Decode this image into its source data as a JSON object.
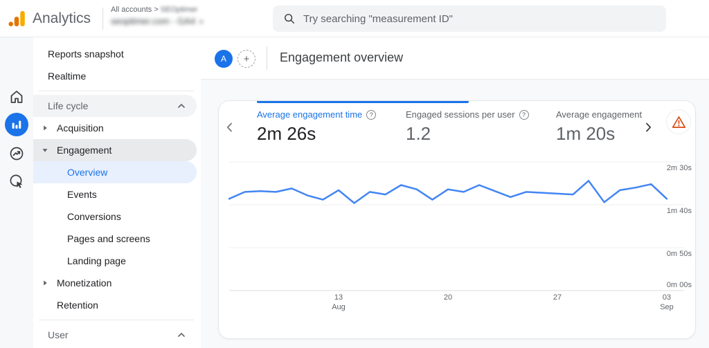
{
  "app_bar": {
    "product_name": "Analytics",
    "account_breadcrumb": {
      "prefix": "All accounts",
      "separator": ">",
      "organization": "SEOptimer"
    },
    "property_selector": {
      "label": "seoptimer.com - GA4",
      "caret": "▾"
    },
    "search": {
      "placeholder": "Try searching \"measurement ID\"",
      "icon": "search-icon"
    }
  },
  "nav_rail": {
    "items": [
      {
        "id": "home",
        "icon": "home-icon",
        "active": false
      },
      {
        "id": "reports",
        "icon": "bar-chart-icon",
        "active": true
      },
      {
        "id": "explore",
        "icon": "explore-icon",
        "active": false
      },
      {
        "id": "advertising",
        "icon": "advertising-icon",
        "active": false
      }
    ]
  },
  "sidebar": {
    "items": [
      {
        "type": "link",
        "label": "Reports snapshot",
        "level": 0
      },
      {
        "type": "link",
        "label": "Realtime",
        "level": 0
      },
      {
        "type": "divider"
      },
      {
        "type": "section",
        "label": "Life cycle",
        "highlighted": true,
        "collapse_icon": "chevron-up-icon"
      },
      {
        "type": "expandable",
        "label": "Acquisition",
        "expanded": false
      },
      {
        "type": "expandable",
        "label": "Engagement",
        "expanded": true,
        "highlighted": true
      },
      {
        "type": "sublink",
        "label": "Overview",
        "selected": true
      },
      {
        "type": "sublink",
        "label": "Events",
        "selected": false
      },
      {
        "type": "sublink",
        "label": "Conversions",
        "selected": false
      },
      {
        "type": "sublink",
        "label": "Pages and screens",
        "selected": false
      },
      {
        "type": "sublink",
        "label": "Landing page",
        "selected": false
      },
      {
        "type": "expandable",
        "label": "Monetization",
        "expanded": false
      },
      {
        "type": "link",
        "label": "Retention",
        "level": 1
      },
      {
        "type": "divider"
      },
      {
        "type": "section",
        "label": "User",
        "highlighted": false,
        "collapse_icon": "chevron-up-icon"
      }
    ]
  },
  "content_header": {
    "avatar_label": "A",
    "add_label": "+",
    "title": "Engagement overview"
  },
  "metrics_carousel": {
    "prev_icon": "chevron-left-icon",
    "next_icon": "chevron-right-icon",
    "warning_icon": "warning-triangle-icon",
    "metrics": [
      {
        "label": "Average engagement time",
        "value": "2m 26s",
        "selected": true,
        "help_icon": "question-mark-icon"
      },
      {
        "label": "Engaged sessions per user",
        "value": "1.2",
        "selected": false,
        "help_icon": "question-mark-icon"
      },
      {
        "label": "Average engagement",
        "value": "1m 20s",
        "selected": false,
        "help_icon": null
      }
    ]
  },
  "chart_data": {
    "type": "line",
    "x": [
      "Aug 6",
      "Aug 7",
      "Aug 8",
      "Aug 9",
      "Aug 10",
      "Aug 11",
      "Aug 12",
      "Aug 13",
      "Aug 14",
      "Aug 15",
      "Aug 16",
      "Aug 17",
      "Aug 18",
      "Aug 19",
      "Aug 20",
      "Aug 21",
      "Aug 22",
      "Aug 23",
      "Aug 24",
      "Aug 25",
      "Aug 26",
      "Aug 27",
      "Aug 28",
      "Aug 29",
      "Aug 30",
      "Aug 31",
      "Sep 1",
      "Sep 2",
      "Sep 3"
    ],
    "series": [
      {
        "name": "Average engagement time",
        "unit": "seconds",
        "color": "#4285f4",
        "values": [
          107,
          115,
          116,
          115,
          119,
          111,
          106,
          117,
          102,
          115,
          112,
          123,
          118,
          106,
          118,
          115,
          123,
          116,
          109,
          115,
          114,
          113,
          112,
          128,
          103,
          117,
          120,
          124,
          107
        ]
      }
    ],
    "y_ticks": [
      {
        "seconds": 150,
        "label": "2m 30s"
      },
      {
        "seconds": 100,
        "label": "1m 40s"
      },
      {
        "seconds": 50,
        "label": "0m 50s"
      },
      {
        "seconds": 0,
        "label": "0m 00s"
      }
    ],
    "x_ticks": [
      {
        "index": 7,
        "lines": [
          "13",
          "Aug"
        ]
      },
      {
        "index": 14,
        "lines": [
          "20"
        ]
      },
      {
        "index": 21,
        "lines": [
          "27"
        ]
      },
      {
        "index": 28,
        "lines": [
          "03",
          "Sep"
        ]
      }
    ],
    "ylim": [
      0,
      155
    ],
    "grid": "horizontal",
    "legend": "none"
  },
  "colors": {
    "accent_blue": "#1a73e8",
    "chart_line": "#4285f4",
    "selected_pill": "#e8f0fe",
    "highlight_pill": "#e9eaec",
    "section_pill": "#f1f3f4",
    "warning_orange": "#d9480f",
    "logo_amber": "#f9ab00",
    "logo_orange": "#e37400",
    "search_bg": "#f1f3f4",
    "text_primary": "#202124",
    "text_secondary": "#5f6368"
  }
}
